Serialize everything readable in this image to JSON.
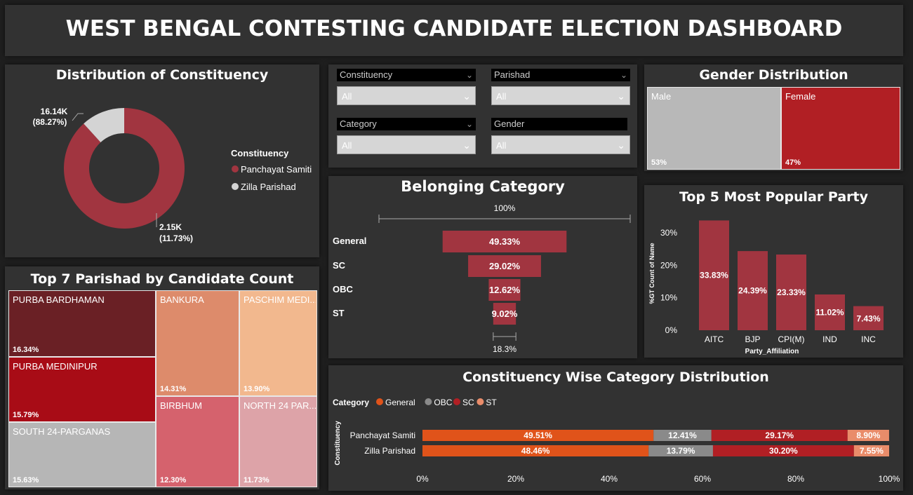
{
  "header": {
    "title": "WEST BENGAL CONTESTING CANDIDATE ELECTION DASHBOARD"
  },
  "constituency_donut": {
    "title": "Distribution of Constituency",
    "legend_title": "Constituency",
    "slices": [
      {
        "name": "Panchayat Samiti",
        "value_label": "16.14K",
        "pct_label": "(88.27%)",
        "pct": 88.27,
        "color": "#a13540"
      },
      {
        "name": "Zilla Parishad",
        "value_label": "2.15K",
        "pct_label": "(11.73%)",
        "pct": 11.73,
        "color": "#d4d4d4"
      }
    ]
  },
  "filters": [
    {
      "label": "Constituency",
      "value": "All"
    },
    {
      "label": "Parishad",
      "value": "All"
    },
    {
      "label": "Category",
      "value": "All"
    },
    {
      "label": "Gender",
      "value": "All"
    }
  ],
  "gender": {
    "title": "Gender Distribution",
    "items": [
      {
        "label": "Male",
        "pct_label": "53%",
        "pct": 53,
        "color": "#b8b8b8"
      },
      {
        "label": "Female",
        "pct_label": "47%",
        "pct": 47,
        "color": "#b11f24"
      }
    ]
  },
  "treemap": {
    "title": "Top 7 Parishad by Candidate Count",
    "items": [
      {
        "name": "PURBA BARDHAMAN",
        "pct_label": "16.34%",
        "color": "#6a2025"
      },
      {
        "name": "PURBA MEDINIPUR",
        "pct_label": "15.79%",
        "color": "#a80c16"
      },
      {
        "name": "SOUTH 24-PARGANAS",
        "pct_label": "15.63%",
        "color": "#b6b6b6"
      },
      {
        "name": "BANKURA",
        "pct_label": "14.31%",
        "color": "#dd8b6b"
      },
      {
        "name": "PASCHIM MEDI...",
        "pct_label": "13.90%",
        "color": "#f2b88e"
      },
      {
        "name": "BIRBHUM",
        "pct_label": "12.30%",
        "color": "#d5626d"
      },
      {
        "name": "NORTH 24 PAR...",
        "pct_label": "11.73%",
        "color": "#dda3a8"
      }
    ]
  },
  "chart_data": [
    {
      "type": "bar",
      "title": "Belonging Category",
      "orientation": "funnel",
      "categories": [
        "General",
        "SC",
        "OBC",
        "ST"
      ],
      "values": [
        49.33,
        29.02,
        12.62,
        9.02
      ],
      "value_labels": [
        "49.33%",
        "29.02%",
        "12.62%",
        "9.02%"
      ],
      "top_label": "100%",
      "bottom_label": "18.3%",
      "color": "#a13540"
    },
    {
      "type": "bar",
      "title": "Top 5 Most Popular Party",
      "xlabel": "Party_Affiliation",
      "ylabel": "%GT Count of Name",
      "categories": [
        "AITC",
        "BJP",
        "CPI(M)",
        "IND",
        "INC"
      ],
      "values": [
        33.83,
        24.39,
        23.33,
        11.02,
        7.43
      ],
      "value_labels": [
        "33.83%",
        "24.39%",
        "23.33%",
        "11.02%",
        "7.43%"
      ],
      "ylim": [
        0,
        35
      ],
      "yticks": [
        0,
        10,
        20,
        30
      ],
      "ytick_labels": [
        "0%",
        "10%",
        "20%",
        "30%"
      ],
      "color": "#a13540"
    },
    {
      "type": "bar",
      "stacked": "100%",
      "title": "Constituency Wise Category Distribution",
      "legend_title": "Category",
      "ylabel": "Constituency",
      "categories": [
        "Panchayat Samiti",
        "Zilla Parishad"
      ],
      "series": [
        {
          "name": "General",
          "color": "#e0531a",
          "values": [
            49.51,
            48.46
          ],
          "labels": [
            "49.51%",
            "48.46%"
          ]
        },
        {
          "name": "OBC",
          "color": "#8a8a8a",
          "values": [
            12.41,
            13.79
          ],
          "labels": [
            "12.41%",
            "13.79%"
          ]
        },
        {
          "name": "SC",
          "color": "#b11f24",
          "values": [
            29.17,
            30.2
          ],
          "labels": [
            "29.17%",
            "30.20%"
          ]
        },
        {
          "name": "ST",
          "color": "#e98c6a",
          "values": [
            8.9,
            7.55
          ],
          "labels": [
            "8.90%",
            "7.55%"
          ]
        }
      ],
      "xticks": [
        0,
        20,
        40,
        60,
        80,
        100
      ],
      "xtick_labels": [
        "0%",
        "20%",
        "40%",
        "60%",
        "80%",
        "100%"
      ]
    }
  ]
}
